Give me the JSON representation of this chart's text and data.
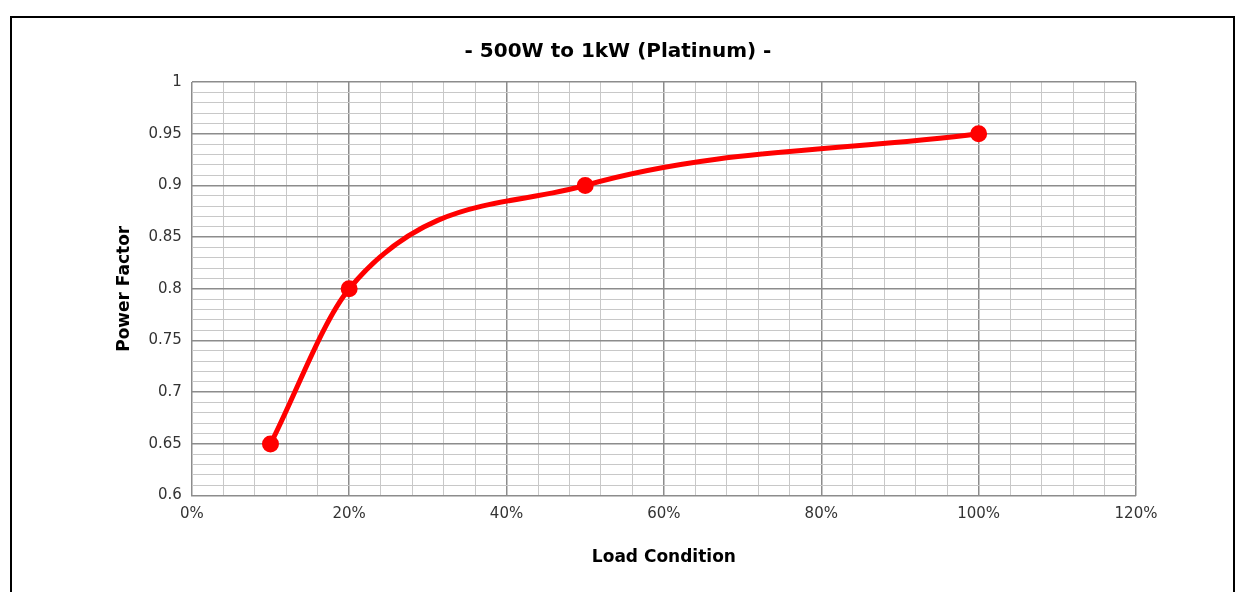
{
  "chart_data": {
    "type": "line",
    "title": "- 500W to 1kW (Platinum) -",
    "xlabel": "Load Condition",
    "ylabel": "Power Factor",
    "series": [
      {
        "color": "#ff0000",
        "x": [
          10,
          20,
          50,
          100
        ],
        "values": [
          0.65,
          0.8,
          0.9,
          0.95
        ]
      }
    ],
    "xlim": [
      0,
      120
    ],
    "xticks": [
      {
        "value": 0,
        "label": "0%"
      },
      {
        "value": 4,
        "label": null
      },
      {
        "value": 8,
        "label": null
      },
      {
        "value": 12,
        "label": null
      },
      {
        "value": 16,
        "label": null
      },
      {
        "value": 20,
        "label": "20%"
      },
      {
        "value": 24,
        "label": null
      },
      {
        "value": 28,
        "label": null
      },
      {
        "value": 32,
        "label": null
      },
      {
        "value": 36,
        "label": null
      },
      {
        "value": 40,
        "label": "40%"
      },
      {
        "value": 44,
        "label": null
      },
      {
        "value": 48,
        "label": null
      },
      {
        "value": 52,
        "label": null
      },
      {
        "value": 56,
        "label": null
      },
      {
        "value": 60,
        "label": "60%"
      },
      {
        "value": 64,
        "label": null
      },
      {
        "value": 68,
        "label": null
      },
      {
        "value": 72,
        "label": null
      },
      {
        "value": 76,
        "label": null
      },
      {
        "value": 80,
        "label": "80%"
      },
      {
        "value": 84,
        "label": null
      },
      {
        "value": 88,
        "label": null
      },
      {
        "value": 92,
        "label": null
      },
      {
        "value": 96,
        "label": null
      },
      {
        "value": 100,
        "label": "100%"
      },
      {
        "value": 104,
        "label": null
      },
      {
        "value": 108,
        "label": null
      },
      {
        "value": 112,
        "label": null
      },
      {
        "value": 116,
        "label": null
      },
      {
        "value": 120,
        "label": "120%"
      }
    ],
    "ylim": [
      0.6,
      1
    ],
    "yticks": [
      0.6,
      {
        "value": 0.61,
        "label": null
      },
      {
        "value": 0.62,
        "label": null
      },
      {
        "value": 0.63,
        "label": null
      },
      {
        "value": 0.64,
        "label": null
      },
      0.65,
      {
        "value": 0.66,
        "label": null
      },
      {
        "value": 0.67,
        "label": null
      },
      {
        "value": 0.68,
        "label": null
      },
      {
        "value": 0.69,
        "label": null
      },
      0.7,
      {
        "value": 0.71,
        "label": null
      },
      {
        "value": 0.72,
        "label": null
      },
      {
        "value": 0.73,
        "label": null
      },
      {
        "value": 0.74,
        "label": null
      },
      0.75,
      {
        "value": 0.76,
        "label": null
      },
      {
        "value": 0.77,
        "label": null
      },
      {
        "value": 0.78,
        "label": null
      },
      {
        "value": 0.79,
        "label": null
      },
      0.8,
      {
        "value": 0.81,
        "label": null
      },
      {
        "value": 0.82,
        "label": null
      },
      {
        "value": 0.83,
        "label": null
      },
      {
        "value": 0.84,
        "label": null
      },
      0.85,
      {
        "value": 0.86,
        "label": null
      },
      {
        "value": 0.87,
        "label": null
      },
      {
        "value": 0.88,
        "label": null
      },
      {
        "value": 0.89,
        "label": null
      },
      0.9,
      {
        "value": 0.91,
        "label": null
      },
      {
        "value": 0.92,
        "label": null
      },
      {
        "value": 0.93,
        "label": null
      },
      {
        "value": 0.94,
        "label": null
      },
      0.95,
      {
        "value": 0.96,
        "label": null
      },
      {
        "value": 0.97,
        "label": null
      },
      {
        "value": 0.98,
        "label": null
      },
      {
        "value": 0.99,
        "label": null
      },
      1
    ],
    "grid": true,
    "legend": false,
    "marker": "circle",
    "line_style": "solid"
  }
}
